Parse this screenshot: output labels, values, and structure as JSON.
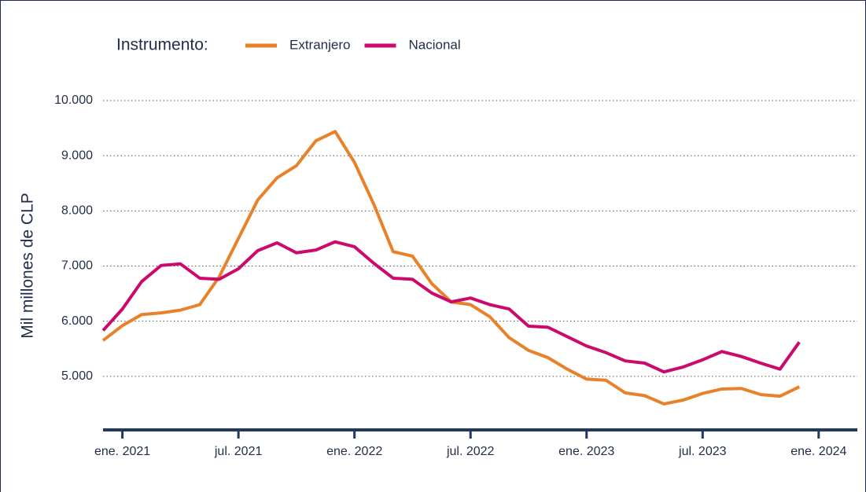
{
  "chart_data": {
    "type": "line",
    "y_label": "Mil millones de CLP",
    "legend_title": "Instrumento:",
    "x": [
      "2020-12",
      "2021-01",
      "2021-02",
      "2021-03",
      "2021-04",
      "2021-05",
      "2021-06",
      "2021-07",
      "2021-08",
      "2021-09",
      "2021-10",
      "2021-11",
      "2021-12",
      "2022-01",
      "2022-02",
      "2022-03",
      "2022-04",
      "2022-05",
      "2022-06",
      "2022-07",
      "2022-08",
      "2022-09",
      "2022-10",
      "2022-11",
      "2022-12",
      "2023-01",
      "2023-02",
      "2023-03",
      "2023-04",
      "2023-05",
      "2023-06",
      "2023-07",
      "2023-08",
      "2023-09",
      "2023-10",
      "2023-11",
      "2023-12"
    ],
    "series": [
      {
        "name": "Extranjero",
        "color": "#e8822a",
        "values": [
          5650,
          5920,
          6120,
          6150,
          6200,
          6300,
          6800,
          7500,
          8200,
          8600,
          8820,
          9270,
          9440,
          8880,
          8120,
          7260,
          7180,
          6680,
          6350,
          6300,
          6080,
          5700,
          5470,
          5340,
          5130,
          4950,
          4930,
          4700,
          4650,
          4500,
          4570,
          4690,
          4770,
          4780,
          4670,
          4640,
          4810
        ]
      },
      {
        "name": "Nacional",
        "color": "#cc0a6e",
        "values": [
          5830,
          6220,
          6720,
          7010,
          7040,
          6780,
          6760,
          6950,
          7280,
          7420,
          7240,
          7290,
          7440,
          7350,
          7050,
          6780,
          6760,
          6510,
          6350,
          6420,
          6300,
          6220,
          5910,
          5890,
          5720,
          5550,
          5430,
          5280,
          5240,
          5080,
          5170,
          5300,
          5450,
          5360,
          5240,
          5130,
          5620
        ]
      }
    ],
    "xlim": [
      "2020-12",
      "2024-03"
    ],
    "xticks": [
      {
        "value": "2021-01",
        "label": "ene. 2021"
      },
      {
        "value": "2021-07",
        "label": "jul. 2021"
      },
      {
        "value": "2022-01",
        "label": "ene. 2022"
      },
      {
        "value": "2022-07",
        "label": "jul. 2022"
      },
      {
        "value": "2023-01",
        "label": "ene. 2023"
      },
      {
        "value": "2023-07",
        "label": "jul. 2023"
      },
      {
        "value": "2024-01",
        "label": "ene. 2024"
      }
    ],
    "ylim": [
      4000,
      10000
    ],
    "yticks": [
      {
        "value": 5000,
        "label": "5.000"
      },
      {
        "value": 6000,
        "label": "6.000"
      },
      {
        "value": 7000,
        "label": "7.000"
      },
      {
        "value": 8000,
        "label": "8.000"
      },
      {
        "value": 9000,
        "label": "9.000"
      },
      {
        "value": 10000,
        "label": "10.000"
      }
    ],
    "grid": true
  }
}
